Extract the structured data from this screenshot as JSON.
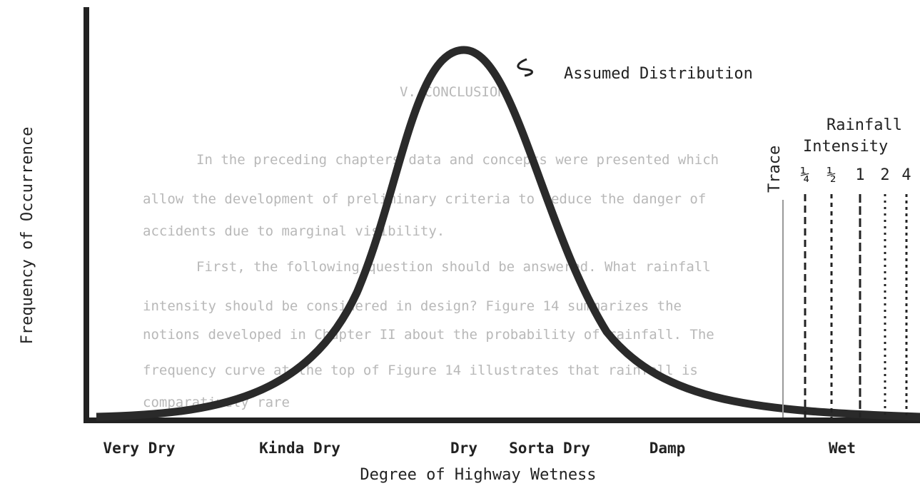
{
  "figure": {
    "y_axis_label": "Frequency of Occurrence",
    "x_axis_label": "Degree of Highway Wetness",
    "curve_label": "Assumed Distribution",
    "x_categories": [
      "Very Dry",
      "Kinda Dry",
      "Dry",
      "Sorta Dry",
      "Damp",
      "Wet"
    ],
    "rainfall": {
      "title_line1": "Rainfall",
      "title_line2": "Intensity",
      "trace": "Trace",
      "levels": [
        "¼",
        "½",
        "1",
        "2",
        "4"
      ]
    }
  },
  "background_text": [
    "V. CONCLUSION",
    "In the preceding chapters data and concepts were presented which",
    "allow the development of preliminary criteria to reduce the danger of",
    "accidents due to marginal visibility.",
    "First, the following question should be answered. What rainfall",
    "intensity should be considered in design? Figure 14 summarizes the",
    "notions developed in Chapter II about the probability of rainfall. The",
    "frequency curve at the top of Figure 14 illustrates that rainfall is",
    "comparatively rare"
  ]
}
